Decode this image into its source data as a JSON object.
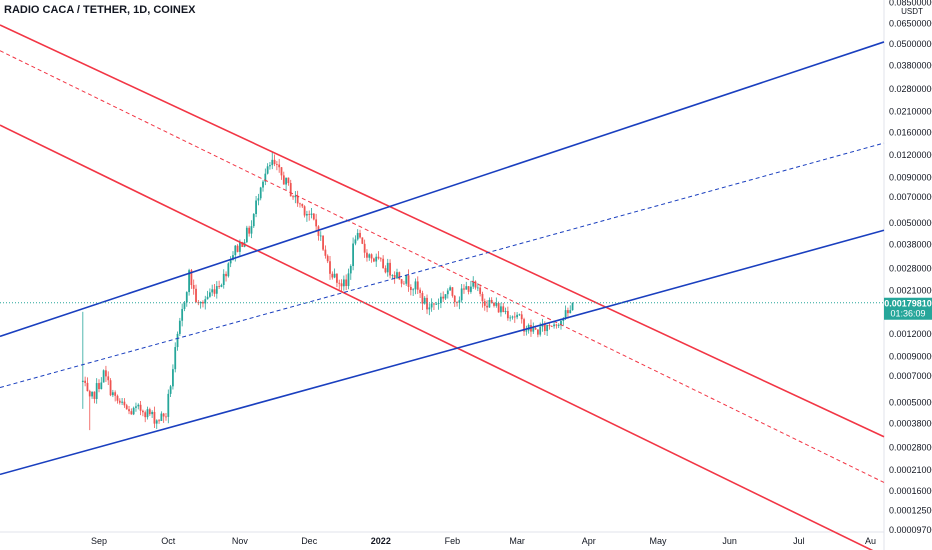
{
  "header": {
    "symbol_title": "RADIO CACA / TETHER, 1D, COINEX"
  },
  "colors": {
    "up": "#26a69a",
    "down": "#ef5350",
    "red_channel": "#f23645",
    "blue_channel": "#1a3fbf",
    "price_tag": "#26a69a",
    "background": "#ffffff",
    "axis_border": "#e0e3eb"
  },
  "chart_data": {
    "type": "candlestick",
    "y_scale": "log",
    "unit_label": "USDT",
    "y_ticks": [
      "0.08500000",
      "0.06500000",
      "0.05000000",
      "0.03800000",
      "0.02800000",
      "0.02100000",
      "0.01600000",
      "0.01200000",
      "0.00900000",
      "0.00700000",
      "0.00500000",
      "0.00380000",
      "0.00280000",
      "0.00210000",
      "0.00120000",
      "0.00090000",
      "0.00070000",
      "0.00050000",
      "0.00038000",
      "0.00028000",
      "0.00021000",
      "0.00016000",
      "0.00012500",
      "0.00009700"
    ],
    "x_ticks": [
      {
        "label": "Sep",
        "date": "2021-09-01"
      },
      {
        "label": "Oct",
        "date": "2021-10-01"
      },
      {
        "label": "Nov",
        "date": "2021-11-01"
      },
      {
        "label": "Dec",
        "date": "2021-12-01"
      },
      {
        "label": "2022",
        "date": "2022-01-01",
        "bold": true
      },
      {
        "label": "Feb",
        "date": "2022-02-01"
      },
      {
        "label": "Mar",
        "date": "2022-03-01"
      },
      {
        "label": "Apr",
        "date": "2022-04-01"
      },
      {
        "label": "May",
        "date": "2022-05-01"
      },
      {
        "label": "Jun",
        "date": "2022-06-01"
      },
      {
        "label": "Jul",
        "date": "2022-07-01"
      },
      {
        "label": "Au",
        "date": "2022-08-01"
      }
    ],
    "last_price": "0.00179810",
    "countdown": "01:36:09",
    "price_anchors": [
      [
        "2021-08-25",
        0.00065
      ],
      [
        "2021-08-28",
        0.0005
      ],
      [
        "2021-09-03",
        0.00072
      ],
      [
        "2021-09-08",
        0.00052
      ],
      [
        "2021-09-14",
        0.00044
      ],
      [
        "2021-09-20",
        0.00046
      ],
      [
        "2021-09-26",
        0.0004
      ],
      [
        "2021-09-30",
        0.00043
      ],
      [
        "2021-10-04",
        0.00095
      ],
      [
        "2021-10-08",
        0.0019
      ],
      [
        "2021-10-10",
        0.0026
      ],
      [
        "2021-10-14",
        0.0017
      ],
      [
        "2021-10-20",
        0.0021
      ],
      [
        "2021-10-25",
        0.0025
      ],
      [
        "2021-10-28",
        0.0033
      ],
      [
        "2021-11-01",
        0.0038
      ],
      [
        "2021-11-06",
        0.0048
      ],
      [
        "2021-11-10",
        0.0085
      ],
      [
        "2021-11-15",
        0.0108
      ],
      [
        "2021-11-20",
        0.0088
      ],
      [
        "2021-11-25",
        0.0068
      ],
      [
        "2021-11-30",
        0.0058
      ],
      [
        "2021-12-05",
        0.0046
      ],
      [
        "2021-12-08",
        0.0032
      ],
      [
        "2021-12-12",
        0.0025
      ],
      [
        "2021-12-17",
        0.0022
      ],
      [
        "2021-12-21",
        0.0043
      ],
      [
        "2021-12-25",
        0.0035
      ],
      [
        "2021-12-31",
        0.003
      ],
      [
        "2022-01-06",
        0.0027
      ],
      [
        "2022-01-12",
        0.0024
      ],
      [
        "2022-01-16",
        0.0022
      ],
      [
        "2022-01-21",
        0.0017
      ],
      [
        "2022-01-25",
        0.0018
      ],
      [
        "2022-01-30",
        0.0021
      ],
      [
        "2022-02-03",
        0.0019
      ],
      [
        "2022-02-09",
        0.0023
      ],
      [
        "2022-02-14",
        0.0019
      ],
      [
        "2022-02-20",
        0.0017
      ],
      [
        "2022-02-25",
        0.0016
      ],
      [
        "2022-03-01",
        0.0015
      ],
      [
        "2022-03-05",
        0.0013
      ],
      [
        "2022-03-09",
        0.00125
      ],
      [
        "2022-03-13",
        0.0013
      ],
      [
        "2022-03-17",
        0.0014
      ],
      [
        "2022-03-20",
        0.00145
      ],
      [
        "2022-03-24",
        0.0016
      ],
      [
        "2022-03-25",
        0.0018
      ]
    ],
    "trendlines": [
      {
        "name": "red-channel-upper",
        "color": "red",
        "dashed": false,
        "p1": [
          "2021-11-15",
          0.0125
        ],
        "p2": [
          "2022-04-15",
          0.00155
        ]
      },
      {
        "name": "red-channel-middle",
        "color": "red",
        "dashed": true,
        "p1": [
          "2021-11-15",
          0.0083
        ],
        "p2": [
          "2022-04-15",
          0.00093
        ]
      },
      {
        "name": "red-channel-lower",
        "color": "red",
        "dashed": false,
        "p1": [
          "2021-11-15",
          0.0032
        ],
        "p2": [
          "2022-04-15",
          0.00036
        ]
      },
      {
        "name": "blue-channel-upper",
        "color": "blue",
        "dashed": false,
        "p1": [
          "2021-10-01",
          0.0024
        ],
        "p2": [
          "2022-04-01",
          0.0145
        ]
      },
      {
        "name": "blue-channel-middle",
        "color": "blue",
        "dashed": true,
        "p1": [
          "2021-10-01",
          0.0011
        ],
        "p2": [
          "2022-04-01",
          0.0049
        ]
      },
      {
        "name": "blue-channel-lower",
        "color": "blue",
        "dashed": false,
        "p1": [
          "2021-10-01",
          0.00036
        ],
        "p2": [
          "2022-04-01",
          0.0016
        ]
      }
    ]
  }
}
